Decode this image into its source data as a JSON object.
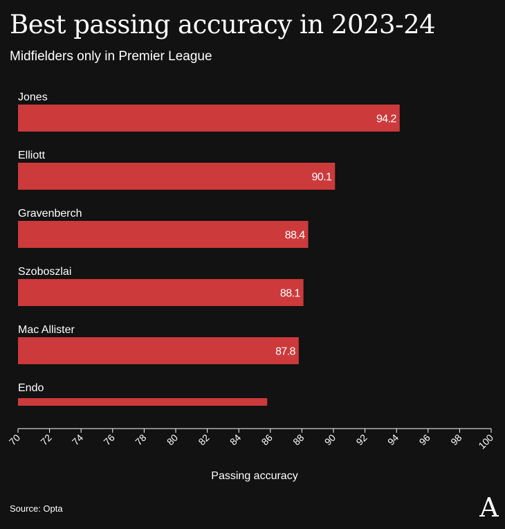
{
  "title": "Best passing accuracy in 2023-24",
  "subtitle": "Midfielders only in Premier League",
  "source": "Source: Opta",
  "logo": {
    "icon": "athletic-logo-icon",
    "letter": "A"
  },
  "colors": {
    "background": "#121212",
    "bar": "#cc3a3c",
    "text": "#ffffff",
    "axis": "#ffffff"
  },
  "chart_data": {
    "type": "bar",
    "orientation": "horizontal",
    "title": "Best passing accuracy in 2023-24",
    "subtitle": "Midfielders only in Premier League",
    "categories": [
      "Jones",
      "Elliott",
      "Gravenberch",
      "Szoboszlai",
      "Mac Allister",
      "Endo"
    ],
    "values": [
      94.2,
      90.1,
      88.4,
      88.1,
      87.8,
      85.8
    ],
    "data_labels": [
      "94.2",
      "90.1",
      "88.4",
      "88.1",
      "87.8",
      ""
    ],
    "xlabel": "Passing accuracy",
    "ylabel": "",
    "xlim": [
      70,
      100
    ],
    "xticks": [
      "70",
      "72",
      "74",
      "76",
      "78",
      "80",
      "82",
      "84",
      "86",
      "88",
      "90",
      "92",
      "94",
      "96",
      "98",
      "100"
    ],
    "grid": false,
    "legend": "none"
  }
}
